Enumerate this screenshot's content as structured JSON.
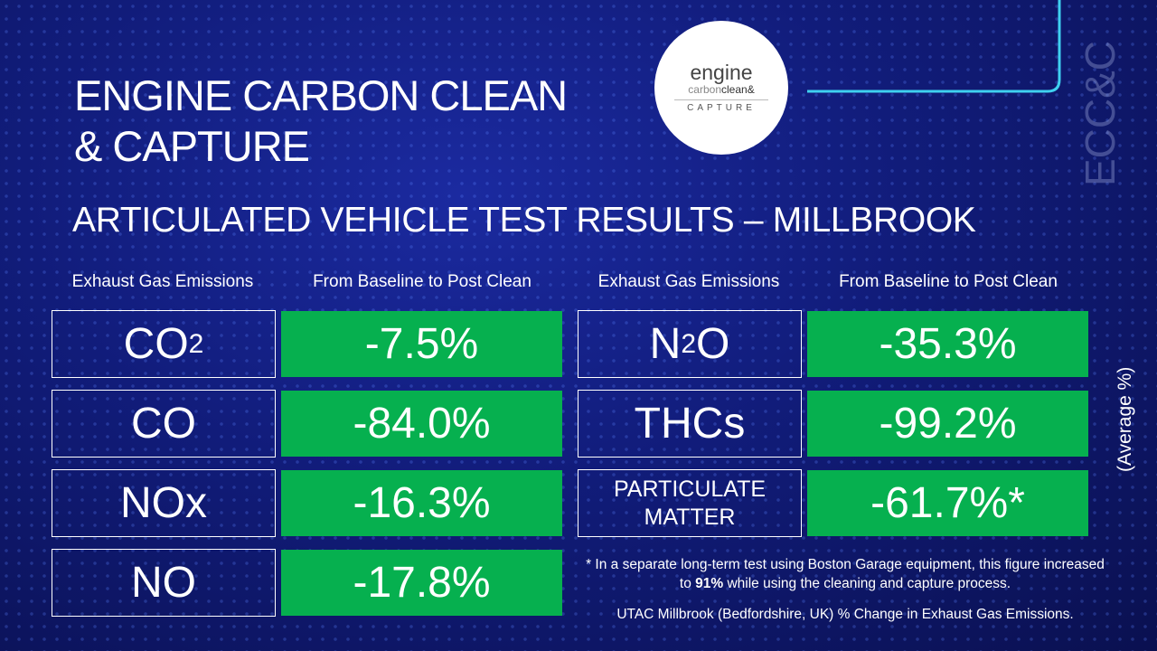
{
  "title": [
    "ENGINE CARBON CLEAN",
    "& CAPTURE"
  ],
  "logo": {
    "word": "engine",
    "brand": [
      "carbon",
      "clean&"
    ],
    "tagline": "CAPTURE"
  },
  "watermark": "ECC&C",
  "subtitle": "ARTICULATED VEHICLE TEST RESULTS – MILLBROOK",
  "tables": [
    {
      "headers": [
        "Exhaust Gas Emissions",
        "From Baseline to Post Clean"
      ],
      "rows": [
        {
          "gas": [
            "CO",
            "2"
          ],
          "change": "-7.5%"
        },
        {
          "gas": [
            "CO"
          ],
          "change": "-84.0%"
        },
        {
          "gas": [
            "NOx"
          ],
          "change": "-16.3%"
        },
        {
          "gas": [
            "NO"
          ],
          "change": "-17.8%"
        }
      ]
    },
    {
      "headers": [
        "Exhaust Gas Emissions",
        "From Baseline to Post Clean"
      ],
      "rows": [
        {
          "gas": [
            "N",
            "2",
            "O"
          ],
          "change": "-35.3%"
        },
        {
          "gas": [
            "THCs"
          ],
          "change": "-99.2%"
        },
        {
          "gas": [
            "PARTICULATE MATTER"
          ],
          "change": "-61.7%*"
        }
      ]
    }
  ],
  "side_note": "(Average %)",
  "footnote": [
    "* In a separate long-term test using Boston Garage equipment, this figure increased to ",
    "91%",
    " while using the cleaning and capture process."
  ],
  "source": "UTAC Millbrook (Bedfordshire, UK) % Change in Exhaust Gas Emissions."
}
